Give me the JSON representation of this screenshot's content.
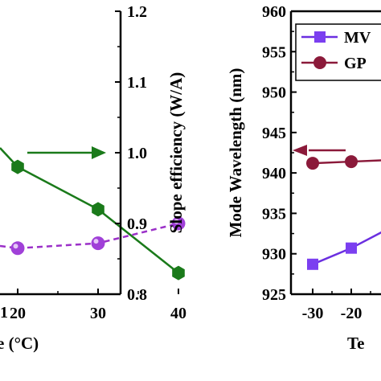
{
  "chart_data": [
    {
      "type": "line",
      "x_ticks": [
        "20",
        "30",
        "40"
      ],
      "x_label_fragment": "e (°C)",
      "left_x_tick_fragment": "1",
      "y_right": {
        "label": "Slope efficiency (W/A)",
        "ticks": [
          "0.8",
          "0.9",
          "1.0",
          "1.1",
          "1.2"
        ],
        "range": [
          0.8,
          1.2
        ]
      },
      "series": [
        {
          "marker": "hexagon",
          "color": "#1a7a1a",
          "style": "solid",
          "x": [
            20,
            30,
            40
          ],
          "values": [
            0.98,
            0.92,
            0.83
          ]
        },
        {
          "marker": "circle",
          "color": "#9b30c8",
          "style": "dashed",
          "x": [
            20,
            30,
            40
          ],
          "values": [
            0.865,
            0.872,
            0.9
          ]
        }
      ],
      "annotation": {
        "type": "arrow",
        "direction": "right",
        "color": "#1a7a1a",
        "points_to": "right-axis"
      }
    },
    {
      "type": "line",
      "x_ticks": [
        "-30",
        "-20",
        "-"
      ],
      "x_label_fragment": "Te",
      "y_left": {
        "label": "Mode Wavelength (nm)",
        "ticks": [
          "925",
          "930",
          "935",
          "940",
          "945",
          "950",
          "955",
          "960"
        ],
        "range": [
          925,
          960
        ]
      },
      "legend": {
        "position": "top-right",
        "entries": [
          "MV",
          "GP"
        ]
      },
      "series": [
        {
          "name": "MV",
          "marker": "square",
          "color": "#6b2fe0",
          "style": "solid",
          "x": [
            -30,
            -20,
            -10
          ],
          "values": [
            928.7,
            930.7,
            933.2
          ]
        },
        {
          "name": "GP",
          "marker": "circle",
          "color": "#8b1a3a",
          "style": "solid",
          "x": [
            -30,
            -20,
            -10
          ],
          "values": [
            941.2,
            941.4,
            941.6
          ]
        }
      ],
      "annotation": {
        "type": "arrow",
        "direction": "left",
        "color": "#8b1a3a",
        "points_to": "left-axis",
        "y": 942.8
      }
    }
  ]
}
